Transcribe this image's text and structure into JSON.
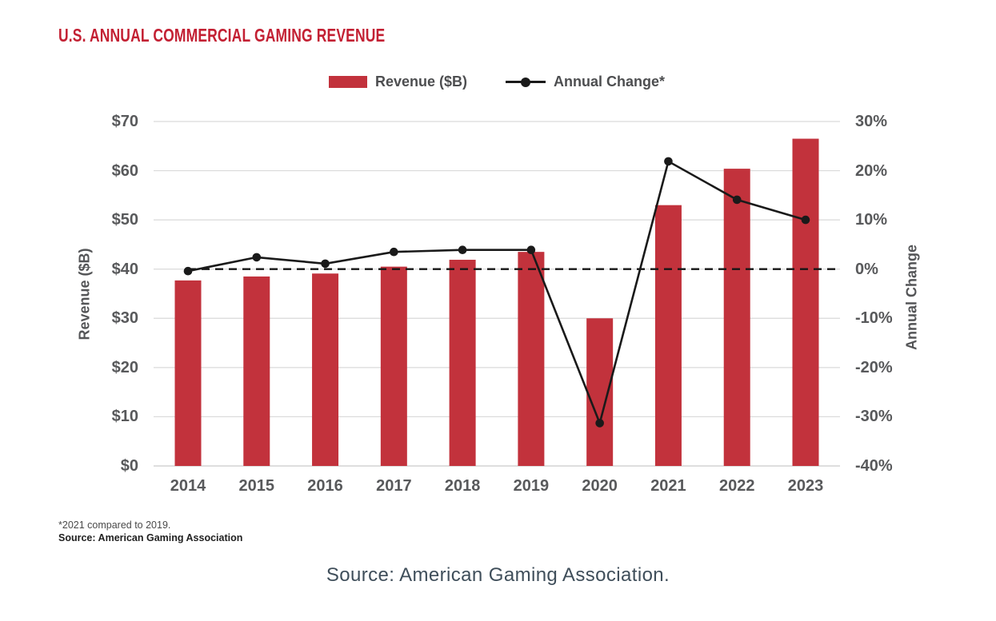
{
  "figure": {
    "title": "U.S. ANNUAL COMMERCIAL GAMING REVENUE",
    "footnote_line1": "*2021 compared to 2019.",
    "footnote_line2": "Source: American Gaming Association",
    "caption": "Source: American Gaming Association."
  },
  "legend": {
    "revenue_label": "Revenue ($B)",
    "annual_change_label": "Annual Change*"
  },
  "colors": {
    "title_red": "#c32033",
    "bar_red": "#c2323c",
    "line_black": "#1a1a1a",
    "gridline": "#dadada",
    "baseline": "#c9c9c9",
    "axis_text": "#58595b"
  },
  "chart_data": {
    "type": "bar",
    "title": "U.S. ANNUAL COMMERCIAL GAMING REVENUE",
    "categories": [
      "2014",
      "2015",
      "2016",
      "2017",
      "2018",
      "2019",
      "2020",
      "2021",
      "2022",
      "2023"
    ],
    "series": [
      {
        "name": "Revenue ($B)",
        "type": "bar",
        "axis": "left",
        "color": "#c2323c",
        "values": [
          37.7,
          38.5,
          39.1,
          40.5,
          41.9,
          43.5,
          30.0,
          53.0,
          60.4,
          66.5
        ]
      },
      {
        "name": "Annual Change*",
        "type": "line",
        "axis": "right",
        "color": "#1a1a1a",
        "values": [
          -0.4,
          2.4,
          1.1,
          3.5,
          3.9,
          3.9,
          -31.3,
          21.9,
          14.1,
          10.0
        ]
      }
    ],
    "xlabel": "",
    "left_axis": {
      "label": "Revenue ($B)",
      "lim": [
        0,
        70
      ],
      "tick_step": 10,
      "ticks_bottom_to_top": [
        "$0",
        "$10",
        "$20",
        "$30",
        "$40",
        "$50",
        "$60",
        "$70"
      ]
    },
    "right_axis": {
      "label": "Annual Change",
      "lim": [
        -40,
        30
      ],
      "tick_step": 10,
      "ticks_bottom_to_top": [
        "-40%",
        "-30%",
        "-20%",
        "-10%",
        "0%",
        "10%",
        "20%",
        "30%"
      ]
    },
    "grid": "horizontal",
    "legend_position": "top-center",
    "zero_line": {
      "style": "dashed",
      "value": 0,
      "axis": "right",
      "starts_at_category": "2014"
    },
    "annotation": "*2021 compared to 2019."
  }
}
